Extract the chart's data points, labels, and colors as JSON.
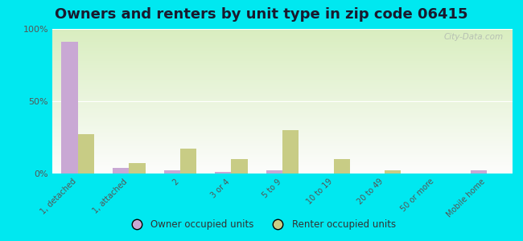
{
  "title": "Owners and renters by unit type in zip code 06415",
  "categories": [
    "1, detached",
    "1, attached",
    "2",
    "3 or 4",
    "5 to 9",
    "10 to 19",
    "20 to 49",
    "50 or more",
    "Mobile home"
  ],
  "owner_values": [
    91,
    4,
    2,
    1,
    2,
    0,
    0,
    0,
    2
  ],
  "renter_values": [
    27,
    7,
    17,
    10,
    30,
    10,
    2,
    0,
    0
  ],
  "owner_color": "#c9a8d4",
  "renter_color": "#c8cc85",
  "outer_bg": "#00e8f0",
  "title_fontsize": 13,
  "watermark": "City-Data.com",
  "ylim": [
    0,
    100
  ],
  "yticks": [
    0,
    50,
    100
  ],
  "ytick_labels": [
    "0%",
    "50%",
    "100%"
  ]
}
